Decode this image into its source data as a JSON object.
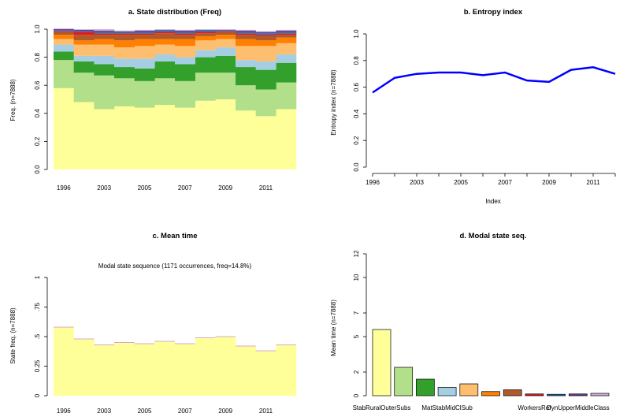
{
  "chart_data": [
    {
      "panel": "a",
      "type": "area",
      "title": "a. State distribution (Freq)",
      "ylabel": "Freq. (n=7888)",
      "ylim": [
        0,
        1
      ],
      "yticks": [
        "0.0",
        "0.2",
        "0.4",
        "0.6",
        "0.8",
        "1.0"
      ],
      "x": [
        "1996",
        "1998",
        "2003",
        "2004",
        "2005",
        "2006",
        "2007",
        "2008",
        "2009",
        "2010",
        "2011",
        "2012"
      ],
      "xtick_labels": [
        "1996",
        "2003",
        "2005",
        "2007",
        "2009",
        "2011"
      ],
      "series": [
        {
          "color": "#FFFF99",
          "values": [
            0.58,
            0.48,
            0.43,
            0.45,
            0.44,
            0.46,
            0.44,
            0.49,
            0.5,
            0.42,
            0.38,
            0.43
          ]
        },
        {
          "color": "#B2DF8A",
          "values": [
            0.2,
            0.21,
            0.24,
            0.2,
            0.19,
            0.19,
            0.19,
            0.2,
            0.19,
            0.18,
            0.19,
            0.19
          ]
        },
        {
          "color": "#33A02C",
          "values": [
            0.06,
            0.08,
            0.08,
            0.08,
            0.09,
            0.12,
            0.12,
            0.11,
            0.12,
            0.13,
            0.14,
            0.14
          ]
        },
        {
          "color": "#A6CEE3",
          "values": [
            0.05,
            0.04,
            0.06,
            0.06,
            0.07,
            0.05,
            0.05,
            0.05,
            0.06,
            0.05,
            0.06,
            0.06
          ]
        },
        {
          "color": "#FDBF6F",
          "values": [
            0.04,
            0.08,
            0.08,
            0.08,
            0.09,
            0.07,
            0.08,
            0.07,
            0.06,
            0.1,
            0.11,
            0.08
          ]
        },
        {
          "color": "#FF7F00",
          "values": [
            0.03,
            0.03,
            0.04,
            0.05,
            0.05,
            0.04,
            0.05,
            0.03,
            0.03,
            0.05,
            0.04,
            0.04
          ]
        },
        {
          "color": "#B15928",
          "values": [
            0.02,
            0.04,
            0.03,
            0.04,
            0.03,
            0.04,
            0.03,
            0.02,
            0.02,
            0.03,
            0.03,
            0.02
          ]
        },
        {
          "color": "#E31A1C",
          "values": [
            0.005,
            0.02,
            0.01,
            0.01,
            0.01,
            0.01,
            0.01,
            0.01,
            0.005,
            0.01,
            0.01,
            0.01
          ]
        },
        {
          "color": "#1F78B4",
          "values": [
            0.005,
            0.005,
            0.01,
            0.01,
            0.01,
            0.01,
            0.01,
            0.01,
            0.005,
            0.01,
            0.01,
            0.01
          ]
        },
        {
          "color": "#6A3D9A",
          "values": [
            0.01,
            0.01,
            0.01,
            0.005,
            0.01,
            0.005,
            0.01,
            0.005,
            0.005,
            0.01,
            0.01,
            0.01
          ]
        },
        {
          "color": "#CAB2D6",
          "values": [
            0.005,
            0.005,
            0.01,
            0.005,
            0.005,
            0.005,
            0.005,
            0.005,
            0.005,
            0.005,
            0.005,
            0.005
          ]
        }
      ]
    },
    {
      "panel": "b",
      "type": "line",
      "title": "b. Entropy index",
      "xlabel": "Index",
      "ylabel": "Entropy index (n=7888)",
      "ylim": [
        0,
        1
      ],
      "yticks": [
        "0.0",
        "0.2",
        "0.4",
        "0.6",
        "0.8",
        "1.0"
      ],
      "xtick_labels": [
        "1996",
        "2003",
        "2005",
        "2007",
        "2009",
        "2011"
      ],
      "line_color": "#0000FF",
      "values": [
        0.56,
        0.67,
        0.7,
        0.71,
        0.71,
        0.69,
        0.71,
        0.65,
        0.64,
        0.73,
        0.75,
        0.7
      ]
    },
    {
      "panel": "c",
      "type": "bar",
      "title": "c. Mean time",
      "subtitle": "Modal state sequence (1171 occurrences, freq=14.8%)",
      "ylabel": "State freq. (n=7888)",
      "ylim": [
        0,
        1
      ],
      "yticks": [
        "0",
        "0.25",
        ".5",
        ".75",
        "1"
      ],
      "xtick_labels": [
        "1996",
        "2003",
        "2005",
        "2007",
        "2009",
        "2011"
      ],
      "bar_color": "#FFFF99",
      "values": [
        0.58,
        0.48,
        0.43,
        0.45,
        0.44,
        0.46,
        0.44,
        0.49,
        0.5,
        0.42,
        0.38,
        0.43
      ]
    },
    {
      "panel": "d",
      "type": "bar",
      "title": "d. Modal state seq.",
      "ylabel": "Mean time (n=7888)",
      "ylim": [
        0,
        12
      ],
      "yticks": [
        "0",
        "2",
        "5",
        "7",
        "10",
        "12"
      ],
      "categories": [
        "StabRuralOuterSubs",
        "",
        "",
        "MatStabMidClSub",
        "",
        "",
        "",
        "WorkersRef",
        "",
        "DynUpperMiddleClass",
        ""
      ],
      "values": [
        5.6,
        2.4,
        1.4,
        0.7,
        1.0,
        0.35,
        0.5,
        0.15,
        0.12,
        0.15,
        0.2
      ],
      "colors": [
        "#FFFF99",
        "#B2DF8A",
        "#33A02C",
        "#A6CEE3",
        "#FDBF6F",
        "#FF7F00",
        "#B15928",
        "#E31A1C",
        "#1F78B4",
        "#6A3D9A",
        "#CAB2D6"
      ]
    }
  ]
}
